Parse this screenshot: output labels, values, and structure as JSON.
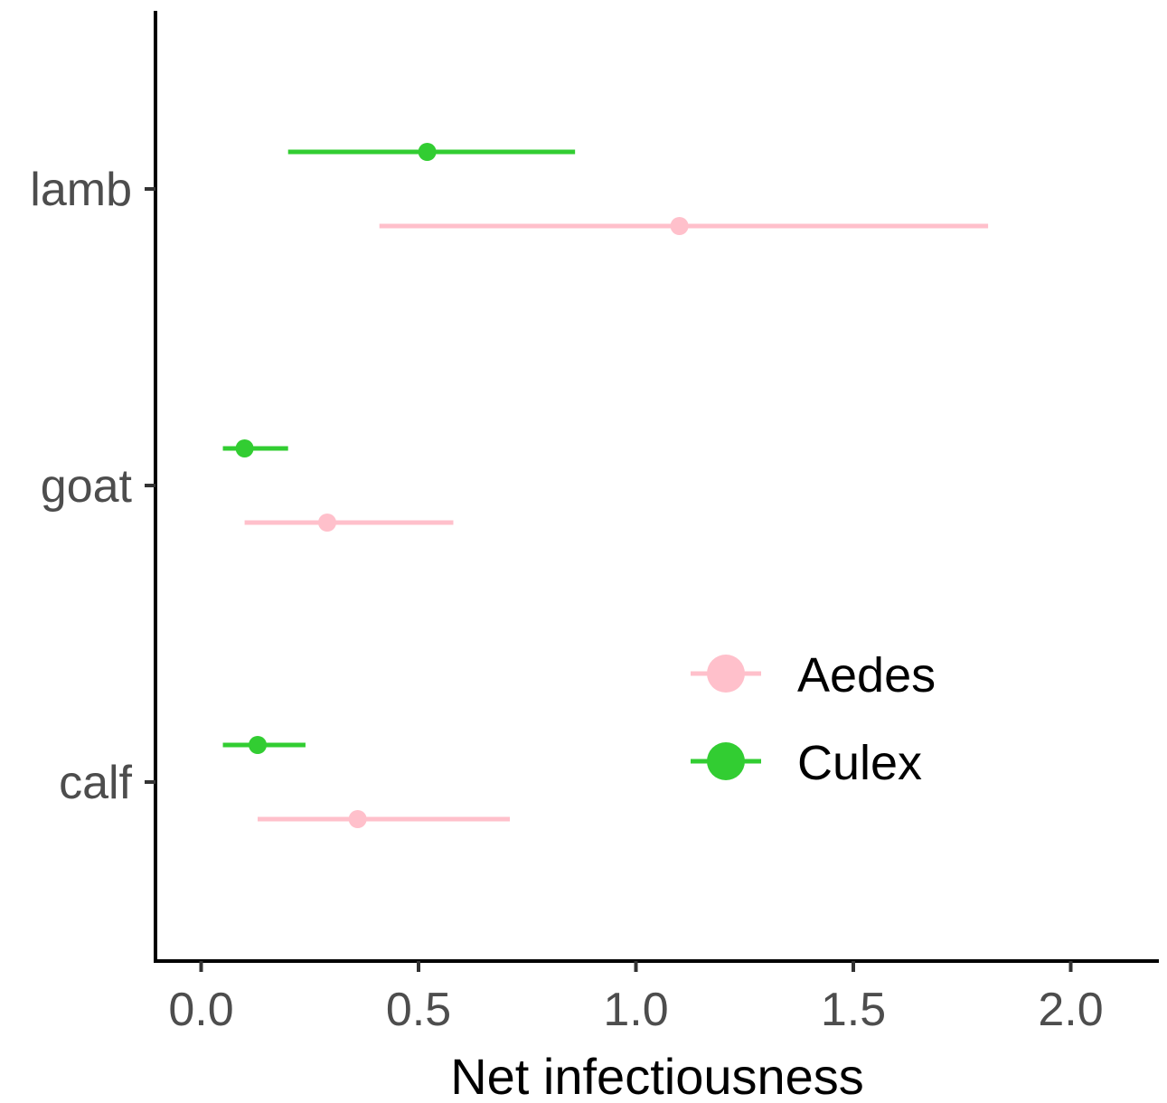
{
  "chart_data": {
    "type": "scatter",
    "subtype": "point-range",
    "title": "",
    "xlabel": "Net infectiousness",
    "ylabel": "",
    "xlim": [
      -0.1,
      2.2
    ],
    "x_ticks": [
      0.0,
      0.5,
      1.0,
      1.5,
      2.0
    ],
    "x_tick_labels": [
      "0.0",
      "0.5",
      "1.0",
      "1.5",
      "2.0"
    ],
    "categories": [
      "lamb",
      "goat",
      "calf"
    ],
    "grid": false,
    "legend_position": "bottom-right",
    "series": [
      {
        "name": "Aedes",
        "color": "#ffc0cb",
        "points": [
          {
            "category": "lamb",
            "value": 1.1,
            "low": 0.41,
            "high": 1.81
          },
          {
            "category": "goat",
            "value": 0.29,
            "low": 0.1,
            "high": 0.58
          },
          {
            "category": "calf",
            "value": 0.36,
            "low": 0.13,
            "high": 0.71
          }
        ]
      },
      {
        "name": "Culex",
        "color": "#32cd32",
        "points": [
          {
            "category": "lamb",
            "value": 0.52,
            "low": 0.2,
            "high": 0.86
          },
          {
            "category": "goat",
            "value": 0.1,
            "low": 0.05,
            "high": 0.2
          },
          {
            "category": "calf",
            "value": 0.13,
            "low": 0.05,
            "high": 0.24
          }
        ]
      }
    ]
  }
}
